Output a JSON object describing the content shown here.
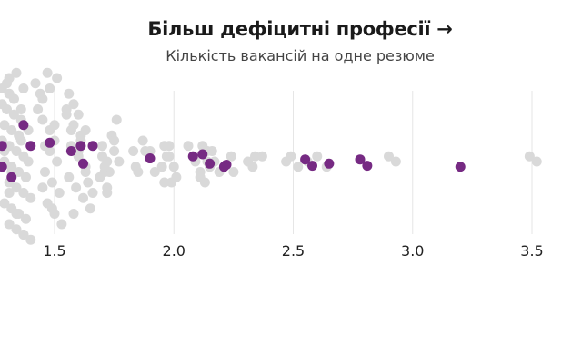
{
  "chart_data": {
    "type": "scatter",
    "subtype": "beeswarm",
    "title": "Більш дефіцитні професії →",
    "subtitle": "Кількість вакансій на одне резюме",
    "xlabel": "",
    "ylabel": "",
    "x_ticks": [
      "1.5",
      "2.0",
      "2.5",
      "3.0",
      "3.5"
    ],
    "x_tick_values": [
      1.5,
      2.0,
      2.5,
      3.0,
      3.5
    ],
    "xlim": [
      1.27,
      3.55
    ],
    "grid": "vertical",
    "legend": "none",
    "colors": {
      "highlight": "#762a83",
      "other": "#d9d9d9",
      "grid": "#e6e6e6"
    },
    "series": [
      {
        "role": "other",
        "x": [
          1.28,
          1.31,
          1.33,
          1.28,
          1.3,
          1.33,
          1.36,
          1.29,
          1.32,
          1.35,
          1.28,
          1.31,
          1.34,
          1.37,
          1.29,
          1.32,
          1.35,
          1.38,
          1.31,
          1.34,
          1.37,
          1.4,
          1.29,
          1.32,
          1.35,
          1.38,
          1.31,
          1.34,
          1.37,
          1.4,
          1.3,
          1.33,
          1.36,
          1.39,
          1.29,
          1.32,
          1.36,
          1.39,
          1.31,
          1.34,
          1.37,
          1.31,
          1.34,
          1.37,
          1.42,
          1.44,
          1.43,
          1.45,
          1.48,
          1.5,
          1.48,
          1.51,
          1.46,
          1.49,
          1.52,
          1.47,
          1.5,
          1.53,
          1.45,
          1.48,
          1.51,
          1.47,
          1.5,
          1.46,
          1.45,
          1.49,
          1.56,
          1.58,
          1.55,
          1.58,
          1.61,
          1.57,
          1.6,
          1.63,
          1.56,
          1.59,
          1.62,
          1.65,
          1.57,
          1.6,
          1.63,
          1.66,
          1.55,
          1.58,
          1.61,
          1.64,
          1.6,
          1.63,
          1.7,
          1.72,
          1.69,
          1.72,
          1.75,
          1.71,
          1.74,
          1.77,
          1.7,
          1.73,
          1.76,
          1.72,
          1.75,
          1.71,
          1.83,
          1.85,
          1.88,
          1.84,
          1.87,
          1.9,
          1.92,
          1.96,
          1.98,
          1.95,
          1.98,
          2.01,
          1.97,
          2.0,
          1.96,
          1.99,
          2.06,
          2.08,
          2.11,
          2.09,
          2.12,
          2.15,
          2.11,
          2.14,
          2.17,
          2.13,
          2.16,
          2.19,
          2.14,
          2.24,
          2.25,
          2.33,
          2.34,
          2.31,
          2.37,
          2.47,
          2.49,
          2.52,
          2.56,
          2.6,
          2.64,
          2.9,
          2.93,
          3.49,
          3.52
        ],
        "y": [
          -7,
          -6.5,
          -6,
          -5.5,
          -5,
          -4.5,
          -4,
          -3.5,
          -3,
          -2.5,
          -2,
          -1.5,
          -1,
          -0.5,
          0,
          0.5,
          1,
          1.5,
          2,
          2.5,
          3,
          3.5,
          4,
          4.5,
          5,
          5.5,
          6,
          6.5,
          7,
          7.5,
          -7.5,
          -6,
          -5,
          -3,
          -1,
          1,
          -2,
          0,
          3,
          5,
          7,
          -8,
          -8.5,
          -7,
          -7.5,
          -6.5,
          -5,
          -4,
          -3,
          -2,
          -1,
          0,
          1,
          2,
          3,
          4,
          5,
          6,
          -6,
          -7,
          -8,
          -8.5,
          -3.5,
          -1.5,
          2.5,
          4.5,
          -6.5,
          -5.5,
          -4.5,
          -3.5,
          -2.5,
          -1.5,
          -0.5,
          0.5,
          1.5,
          2.5,
          3.5,
          4.5,
          -3,
          -1,
          1,
          3,
          -5,
          5,
          -2,
          2,
          -4.5,
          -3,
          -1.5,
          0,
          1.5,
          3,
          -1,
          1,
          -2.5,
          0,
          -0.5,
          1,
          -4,
          2.5,
          -2,
          0.5,
          -1,
          1,
          -1,
          0.5,
          -2,
          -1,
          1,
          2,
          -0.5,
          0.5,
          -1.5,
          1.5,
          -0.5,
          0.5,
          -1.5,
          2,
          -1.5,
          -0.5,
          1,
          0,
          -1.5,
          0.5,
          1.5,
          -1,
          0,
          2,
          -1,
          1,
          0,
          -0.5,
          1,
          0.5,
          -0.5,
          0,
          -0.5,
          0,
          -0.5,
          0.5,
          0,
          -0.5,
          0.5,
          -0.5,
          0,
          -0.5,
          0
        ]
      },
      {
        "role": "highlight",
        "x": [
          1.28,
          1.28,
          1.32,
          1.37,
          1.4,
          1.48,
          1.57,
          1.61,
          1.62,
          1.66,
          1.9,
          2.08,
          2.12,
          2.15,
          2.21,
          2.22,
          2.55,
          2.58,
          2.65,
          2.78,
          2.81,
          3.2
        ],
        "y": [
          -1.5,
          0.5,
          1.5,
          -3.5,
          -1.5,
          -1.8,
          -1,
          -1.5,
          0.2,
          -1.5,
          -0.3,
          -0.5,
          -0.7,
          0.2,
          0.5,
          0.3,
          -0.2,
          0.4,
          0.2,
          -0.2,
          0.4,
          0.5
        ]
      }
    ]
  }
}
